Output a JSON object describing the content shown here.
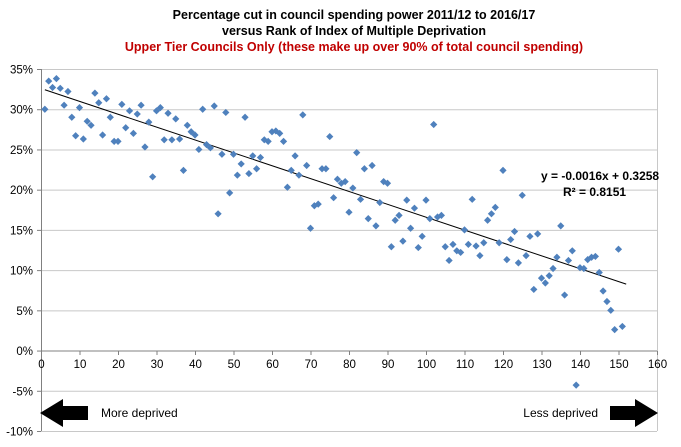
{
  "chart_data": {
    "type": "scatter",
    "title": "Percentage cut in council spending power 2011/12 to 2016/17",
    "subtitle": "versus Rank of Index of Multiple Deprivation",
    "subtitle2": "Upper Tier Councils Only (these make up over 90% of total council spending)",
    "subtitle2_color": "#c00000",
    "xlabel": "",
    "ylabel": "",
    "xlim": [
      0,
      160
    ],
    "ylim": [
      -10,
      35
    ],
    "x_ticks": [
      0,
      10,
      20,
      30,
      40,
      50,
      60,
      70,
      80,
      90,
      100,
      110,
      120,
      130,
      140,
      150,
      160
    ],
    "y_ticks": [
      -10,
      -5,
      0,
      5,
      10,
      15,
      20,
      25,
      30,
      35
    ],
    "y_tick_labels": [
      "-10%",
      "-5%",
      "0%",
      "5%",
      "10%",
      "15%",
      "20%",
      "25%",
      "30%",
      "35%"
    ],
    "grid": true,
    "marker": "diamond",
    "marker_color": "#4f81bd",
    "trendline": {
      "slope": -0.16,
      "intercept": 32.58,
      "x_range": [
        1,
        152
      ],
      "equation": "y = -0.0016x + 0.3258",
      "r_squared": "R² = 0.8151",
      "color": "#000000"
    },
    "arrows": {
      "left_label": "More deprived",
      "right_label": "Less deprived",
      "color": "#000000"
    },
    "points": [
      [
        1,
        30.0
      ],
      [
        2,
        33.5
      ],
      [
        3,
        32.7
      ],
      [
        4,
        33.8
      ],
      [
        5,
        32.6
      ],
      [
        6,
        30.5
      ],
      [
        7,
        32.2
      ],
      [
        8,
        29.0
      ],
      [
        9,
        26.7
      ],
      [
        10,
        30.2
      ],
      [
        11,
        26.3
      ],
      [
        12,
        28.5
      ],
      [
        13,
        28.0
      ],
      [
        14,
        32.0
      ],
      [
        15,
        30.8
      ],
      [
        16,
        26.8
      ],
      [
        17,
        31.3
      ],
      [
        18,
        29.0
      ],
      [
        19,
        26.0
      ],
      [
        20,
        26.0
      ],
      [
        21,
        30.6
      ],
      [
        22,
        27.7
      ],
      [
        23,
        29.8
      ],
      [
        24,
        27.0
      ],
      [
        25,
        29.4
      ],
      [
        26,
        30.5
      ],
      [
        27,
        25.3
      ],
      [
        28,
        28.4
      ],
      [
        29,
        21.6
      ],
      [
        30,
        29.8
      ],
      [
        31,
        30.2
      ],
      [
        32,
        26.2
      ],
      [
        33,
        29.5
      ],
      [
        34,
        26.2
      ],
      [
        35,
        28.8
      ],
      [
        36,
        26.3
      ],
      [
        37,
        22.4
      ],
      [
        38,
        28.0
      ],
      [
        39,
        27.2
      ],
      [
        40,
        26.8
      ],
      [
        41,
        25.0
      ],
      [
        42,
        30.0
      ],
      [
        43,
        25.6
      ],
      [
        44,
        25.2
      ],
      [
        45,
        30.4
      ],
      [
        46,
        17.0
      ],
      [
        47,
        24.4
      ],
      [
        48,
        29.6
      ],
      [
        49,
        19.6
      ],
      [
        50,
        24.4
      ],
      [
        51,
        21.8
      ],
      [
        52,
        23.2
      ],
      [
        53,
        29.0
      ],
      [
        54,
        22.0
      ],
      [
        55,
        24.2
      ],
      [
        56,
        22.6
      ],
      [
        57,
        24.0
      ],
      [
        58,
        26.2
      ],
      [
        59,
        26.0
      ],
      [
        60,
        27.2
      ],
      [
        61,
        27.3
      ],
      [
        62,
        27.0
      ],
      [
        63,
        26.0
      ],
      [
        64,
        20.3
      ],
      [
        65,
        22.4
      ],
      [
        66,
        24.2
      ],
      [
        67,
        21.8
      ],
      [
        68,
        29.3
      ],
      [
        69,
        23.0
      ],
      [
        70,
        15.2
      ],
      [
        71,
        18.0
      ],
      [
        72,
        18.2
      ],
      [
        73,
        22.6
      ],
      [
        74,
        22.6
      ],
      [
        75,
        26.6
      ],
      [
        76,
        19.0
      ],
      [
        77,
        21.3
      ],
      [
        78,
        20.8
      ],
      [
        79,
        21.0
      ],
      [
        80,
        17.2
      ],
      [
        81,
        20.2
      ],
      [
        82,
        24.6
      ],
      [
        83,
        18.8
      ],
      [
        84,
        22.6
      ],
      [
        85,
        16.4
      ],
      [
        86,
        23.0
      ],
      [
        87,
        15.5
      ],
      [
        88,
        18.4
      ],
      [
        89,
        21.0
      ],
      [
        90,
        20.8
      ],
      [
        91,
        12.9
      ],
      [
        92,
        16.2
      ],
      [
        93,
        16.8
      ],
      [
        94,
        13.6
      ],
      [
        95,
        18.7
      ],
      [
        96,
        15.2
      ],
      [
        97,
        17.7
      ],
      [
        98,
        12.8
      ],
      [
        99,
        14.2
      ],
      [
        100,
        18.7
      ],
      [
        101,
        16.4
      ],
      [
        102,
        28.1
      ],
      [
        103,
        16.6
      ],
      [
        104,
        16.8
      ],
      [
        105,
        12.9
      ],
      [
        106,
        11.2
      ],
      [
        107,
        13.2
      ],
      [
        108,
        12.4
      ],
      [
        109,
        12.2
      ],
      [
        110,
        15.0
      ],
      [
        111,
        13.2
      ],
      [
        112,
        18.8
      ],
      [
        113,
        13.0
      ],
      [
        114,
        11.8
      ],
      [
        115,
        13.4
      ],
      [
        116,
        16.2
      ],
      [
        117,
        17.0
      ],
      [
        118,
        17.8
      ],
      [
        119,
        13.4
      ],
      [
        120,
        22.4
      ],
      [
        121,
        11.3
      ],
      [
        122,
        13.8
      ],
      [
        123,
        14.8
      ],
      [
        124,
        10.9
      ],
      [
        125,
        19.3
      ],
      [
        126,
        11.8
      ],
      [
        127,
        14.2
      ],
      [
        128,
        7.6
      ],
      [
        129,
        14.5
      ],
      [
        130,
        9.0
      ],
      [
        131,
        8.4
      ],
      [
        132,
        9.3
      ],
      [
        133,
        10.2
      ],
      [
        134,
        11.6
      ],
      [
        135,
        15.5
      ],
      [
        136,
        6.9
      ],
      [
        137,
        11.2
      ],
      [
        138,
        12.4
      ],
      [
        139,
        -4.3
      ],
      [
        140,
        10.3
      ],
      [
        141,
        10.2
      ],
      [
        142,
        11.3
      ],
      [
        143,
        11.6
      ],
      [
        144,
        11.7
      ],
      [
        145,
        9.7
      ],
      [
        146,
        7.4
      ],
      [
        147,
        6.1
      ],
      [
        148,
        5.0
      ],
      [
        149,
        2.6
      ],
      [
        150,
        12.6
      ],
      [
        151,
        3.0
      ]
    ]
  }
}
